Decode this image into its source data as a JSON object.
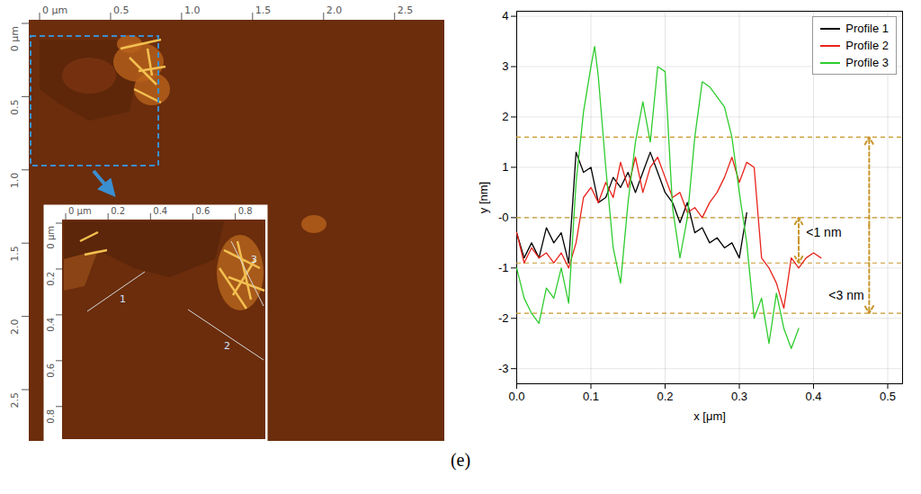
{
  "figure_label": "(e)",
  "afm_image": {
    "xlim": [
      0,
      2.85
    ],
    "ylim": [
      0,
      2.85
    ],
    "xticks": [
      {
        "value": 0,
        "label": "0 μm"
      },
      0.5,
      {
        "value": 1,
        "label": "1.0"
      },
      1.5,
      {
        "value": 2,
        "label": "2.0"
      },
      2.5
    ],
    "yticks": [
      {
        "value": 0,
        "label": "0 μm"
      },
      0.5,
      {
        "value": 1,
        "label": "1.0"
      },
      1.5,
      {
        "value": 2,
        "label": "2.0"
      },
      2.5
    ],
    "inset": {
      "xlim": [
        0,
        0.95
      ],
      "ylim": [
        0,
        0.95
      ],
      "xticks": [
        {
          "value": 0,
          "label": "0 μm"
        },
        0.2,
        0.4,
        0.6,
        0.8
      ],
      "yticks": [
        {
          "value": 0,
          "label": "0 μm"
        },
        0.2,
        0.4,
        0.6,
        0.8
      ],
      "profile_labels": [
        "1",
        "2",
        "3"
      ]
    }
  },
  "chart_data": {
    "type": "line",
    "x_label": "x [μm]",
    "y_label": "y [nm]",
    "xlim": [
      0,
      0.52
    ],
    "ylim": [
      -3.3,
      4.1
    ],
    "xticks": [
      {
        "value": 0,
        "label": "0.0"
      },
      0.1,
      0.2,
      0.3,
      0.4,
      0.5
    ],
    "yticks": [
      -3,
      -2,
      -1,
      {
        "value": 0,
        "label": "-0"
      },
      1,
      2,
      3,
      4
    ],
    "grid": true,
    "legend": "top-right",
    "series": [
      {
        "name": "Profile 1",
        "color": "#000000",
        "x": [
          0,
          0.01,
          0.02,
          0.03,
          0.04,
          0.05,
          0.06,
          0.07,
          0.08,
          0.09,
          0.1,
          0.11,
          0.12,
          0.13,
          0.14,
          0.15,
          0.16,
          0.17,
          0.18,
          0.19,
          0.2,
          0.21,
          0.22,
          0.23,
          0.24,
          0.25,
          0.26,
          0.27,
          0.28,
          0.29,
          0.3,
          0.31
        ],
        "values": [
          -0.3,
          -0.8,
          -0.5,
          -0.8,
          -0.2,
          -0.5,
          -0.3,
          -0.9,
          1.3,
          0.9,
          1.0,
          0.3,
          0.4,
          0.8,
          0.6,
          0.9,
          0.5,
          0.9,
          1.3,
          0.9,
          0.5,
          0.3,
          -0.1,
          0.3,
          -0.3,
          -0.2,
          -0.5,
          -0.4,
          -0.6,
          -0.5,
          -0.8,
          0.1
        ]
      },
      {
        "name": "Profile 2",
        "color": "#e8231b",
        "x": [
          0,
          0.01,
          0.02,
          0.03,
          0.04,
          0.05,
          0.06,
          0.07,
          0.08,
          0.09,
          0.1,
          0.11,
          0.12,
          0.13,
          0.14,
          0.15,
          0.16,
          0.17,
          0.18,
          0.19,
          0.2,
          0.21,
          0.22,
          0.23,
          0.24,
          0.25,
          0.26,
          0.27,
          0.28,
          0.29,
          0.3,
          0.31,
          0.32,
          0.33,
          0.34,
          0.35,
          0.36,
          0.37,
          0.38,
          0.39,
          0.4,
          0.41
        ],
        "values": [
          -0.3,
          -0.9,
          -0.6,
          -0.8,
          -0.7,
          -0.9,
          -0.7,
          -1.0,
          -0.5,
          0.4,
          0.6,
          0.3,
          0.7,
          0.4,
          1.1,
          0.6,
          1.2,
          0.5,
          1.0,
          1.2,
          0.8,
          0.4,
          0.5,
          0.1,
          0.2,
          0.0,
          0.3,
          0.5,
          0.8,
          1.2,
          0.7,
          1.1,
          1.0,
          -0.8,
          -1.0,
          -1.3,
          -1.8,
          -0.8,
          -1.0,
          -0.8,
          -0.7,
          -0.8
        ]
      },
      {
        "name": "Profile 3",
        "color": "#2ecc2e",
        "x": [
          0,
          0.01,
          0.02,
          0.03,
          0.04,
          0.05,
          0.06,
          0.07,
          0.08,
          0.09,
          0.1,
          0.105,
          0.11,
          0.12,
          0.13,
          0.14,
          0.15,
          0.16,
          0.17,
          0.18,
          0.19,
          0.2,
          0.21,
          0.22,
          0.23,
          0.24,
          0.25,
          0.26,
          0.27,
          0.28,
          0.29,
          0.3,
          0.31,
          0.32,
          0.33,
          0.34,
          0.35,
          0.36,
          0.37,
          0.38
        ],
        "values": [
          -1.0,
          -1.6,
          -1.9,
          -2.1,
          -1.4,
          -1.6,
          -1.0,
          -1.7,
          0.7,
          2.1,
          3.0,
          3.4,
          2.8,
          1.0,
          -0.6,
          -1.3,
          0.3,
          1.5,
          2.3,
          1.5,
          3.0,
          2.9,
          0.2,
          -0.8,
          0.0,
          1.6,
          2.7,
          2.6,
          2.4,
          2.2,
          1.6,
          0.5,
          -0.5,
          -2.0,
          -1.6,
          -2.5,
          -1.5,
          -2.2,
          -2.6,
          -2.2
        ]
      }
    ],
    "reference_lines": {
      "color": "#c8962a",
      "line_style": "dashed",
      "values": [
        1.6,
        0,
        -0.9,
        -1.9
      ]
    },
    "arrows": [
      {
        "x": 0.38,
        "y1": 0,
        "y2": -0.9
      },
      {
        "x": 0.475,
        "y1": 1.6,
        "y2": -1.9
      }
    ],
    "annotations": [
      {
        "text": "<1 nm",
        "x": 0.39,
        "y": -0.3
      },
      {
        "text": "<3 nm",
        "x": 0.468,
        "y": -1.55
      }
    ]
  }
}
